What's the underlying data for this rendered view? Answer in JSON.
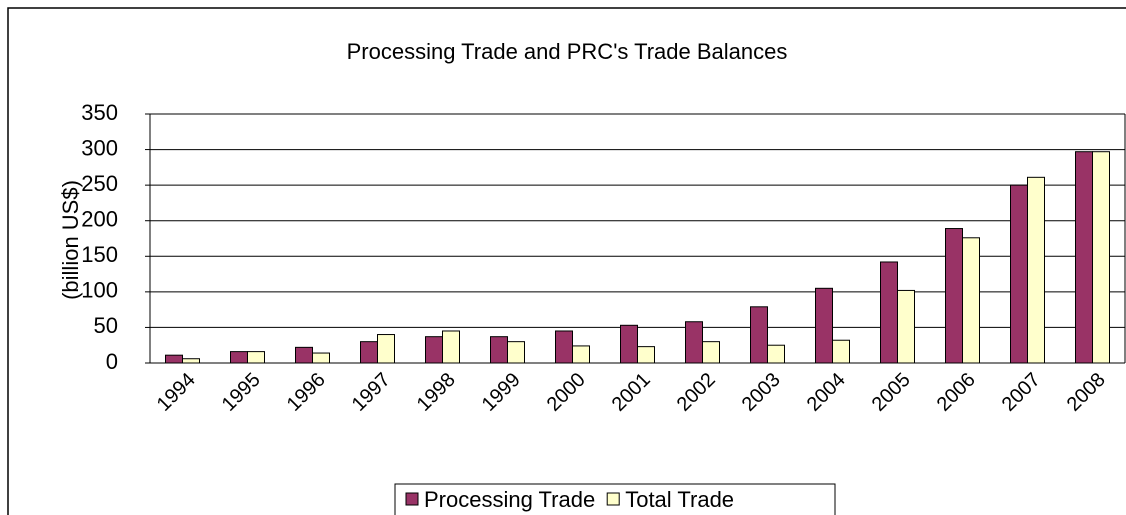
{
  "chart_data": {
    "type": "bar",
    "title": "Processing Trade and PRC's Trade Balances",
    "y_label": "(billion US$)",
    "categories": [
      "1994",
      "1995",
      "1996",
      "1997",
      "1998",
      "1999",
      "2000",
      "2001",
      "2002",
      "2003",
      "2004",
      "2005",
      "2006",
      "2007",
      "2008"
    ],
    "series": [
      {
        "name": "Processing Trade",
        "color": "#993366",
        "values": [
          11,
          16,
          22,
          30,
          37,
          37,
          45,
          53,
          58,
          79,
          105,
          142,
          189,
          250,
          297
        ]
      },
      {
        "name": "Total Trade",
        "color": "#ffffcc",
        "values": [
          6,
          16,
          14,
          40,
          45,
          30,
          24,
          23,
          30,
          25,
          32,
          102,
          176,
          261,
          297
        ]
      }
    ],
    "ylim": [
      0,
      350
    ],
    "yticks": [
      0,
      50,
      100,
      150,
      200,
      250,
      300,
      350
    ],
    "grid": true,
    "legend": "bottom"
  }
}
